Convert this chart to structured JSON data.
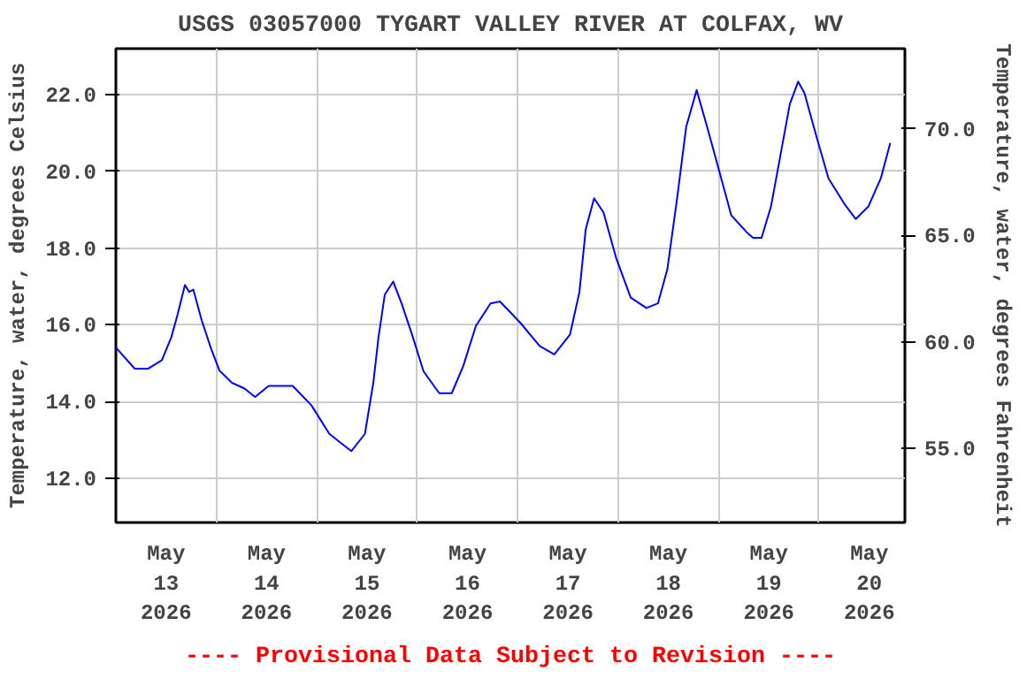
{
  "chart_data": {
    "type": "line",
    "title": "USGS 03057000 TYGART VALLEY RIVER AT COLFAX, WV",
    "ylabel": "Temperature, water, degrees Celsius",
    "y2label": "Temperature, water, degrees Fahrenheit",
    "annotations": [
      "---- Provisional Data Subject to Revision ----"
    ],
    "x": [
      "2026-05-13T00:00",
      "2026-05-13T04:30",
      "2026-05-13T07:45",
      "2026-05-13T11:00",
      "2026-05-13T13:15",
      "2026-05-13T14:45",
      "2026-05-13T16:30",
      "2026-05-13T17:30",
      "2026-05-13T18:30",
      "2026-05-13T20:30",
      "2026-05-13T22:45",
      "2026-05-14T00:45",
      "2026-05-14T03:45",
      "2026-05-14T06:45",
      "2026-05-14T09:15",
      "2026-05-14T12:30",
      "2026-05-14T18:15",
      "2026-05-14T22:45",
      "2026-05-15T03:00",
      "2026-05-15T08:15",
      "2026-05-15T11:30",
      "2026-05-15T13:30",
      "2026-05-15T14:45",
      "2026-05-15T16:15",
      "2026-05-15T18:15",
      "2026-05-15T20:15",
      "2026-05-15T22:45",
      "2026-05-16T01:30",
      "2026-05-16T05:15",
      "2026-05-16T08:15",
      "2026-05-16T11:00",
      "2026-05-16T14:00",
      "2026-05-16T17:30",
      "2026-05-16T19:45",
      "2026-05-16T22:45",
      "2026-05-17T00:45",
      "2026-05-17T05:15",
      "2026-05-17T08:45",
      "2026-05-17T12:30",
      "2026-05-17T14:45",
      "2026-05-17T16:15",
      "2026-05-17T18:15",
      "2026-05-17T20:30",
      "2026-05-17T23:30",
      "2026-05-18T03:00",
      "2026-05-18T06:45",
      "2026-05-18T09:30",
      "2026-05-18T11:45",
      "2026-05-18T14:00",
      "2026-05-18T16:15",
      "2026-05-18T18:45",
      "2026-05-18T21:15",
      "2026-05-19T00:15",
      "2026-05-19T03:00",
      "2026-05-19T06:45",
      "2026-05-19T08:15",
      "2026-05-19T10:15",
      "2026-05-19T12:30",
      "2026-05-19T14:45",
      "2026-05-19T17:00",
      "2026-05-19T19:00",
      "2026-05-19T20:30",
      "2026-05-19T23:30",
      "2026-05-20T02:15",
      "2026-05-20T06:00",
      "2026-05-20T08:45",
      "2026-05-20T11:45",
      "2026-05-20T14:45",
      "2026-05-20T17:00"
    ],
    "series": [
      {
        "color": "#0000ff",
        "values": [
          15.41,
          14.86,
          14.86,
          15.08,
          15.68,
          16.27,
          17.04,
          16.86,
          16.92,
          16.12,
          15.38,
          14.81,
          14.49,
          14.34,
          14.12,
          14.41,
          14.41,
          13.9,
          13.16,
          12.71,
          13.16,
          14.49,
          15.68,
          16.79,
          17.13,
          16.56,
          15.75,
          14.79,
          14.22,
          14.22,
          14.93,
          15.97,
          16.56,
          16.61,
          16.27,
          16.04,
          15.45,
          15.23,
          15.75,
          16.86,
          18.49,
          19.3,
          18.93,
          17.75,
          16.71,
          16.44,
          16.56,
          17.45,
          19.23,
          21.16,
          22.12,
          21.16,
          19.97,
          18.86,
          18.41,
          18.27,
          18.27,
          19.08,
          20.41,
          21.75,
          22.34,
          22.04,
          20.86,
          19.82,
          19.16,
          18.76,
          19.08,
          19.82,
          20.74
        ]
      }
    ],
    "xlim": [
      "2026-05-13T00:00",
      "2026-05-20T20:30"
    ],
    "xticks": [
      {
        "value": "2026-05-13T12:00",
        "label": "May\n13\n2026"
      },
      {
        "value": "2026-05-14T00:00",
        "label": null
      },
      {
        "value": "2026-05-14T12:00",
        "label": "May\n14\n2026"
      },
      {
        "value": "2026-05-15T00:00",
        "label": null
      },
      {
        "value": "2026-05-15T12:00",
        "label": "May\n15\n2026"
      },
      {
        "value": "2026-05-16T00:00",
        "label": null
      },
      {
        "value": "2026-05-16T12:00",
        "label": "May\n16\n2026"
      },
      {
        "value": "2026-05-17T00:00",
        "label": null
      },
      {
        "value": "2026-05-17T12:00",
        "label": "May\n17\n2026"
      },
      {
        "value": "2026-05-18T00:00",
        "label": null
      },
      {
        "value": "2026-05-18T12:00",
        "label": "May\n18\n2026"
      },
      {
        "value": "2026-05-19T00:00",
        "label": null
      },
      {
        "value": "2026-05-19T12:00",
        "label": "May\n19\n2026"
      },
      {
        "value": "2026-05-20T00:00",
        "label": null
      },
      {
        "value": "2026-05-20T12:00",
        "label": "May\n20\n2026"
      }
    ],
    "ylim": [
      10.85,
      23.2
    ],
    "yticks": [
      {
        "value": 12,
        "label": "12.0"
      },
      {
        "value": 14,
        "label": "14.0"
      },
      {
        "value": 16,
        "label": "16.0"
      },
      {
        "value": 18,
        "label": "18.0"
      },
      {
        "value": 20,
        "label": "20.0"
      },
      {
        "value": 22,
        "label": "22.0"
      }
    ],
    "y2lim": [
      51.53,
      73.76
    ],
    "y2ticks": [
      {
        "value": 55,
        "label": "55.0"
      },
      {
        "value": 60,
        "label": "60.0"
      },
      {
        "value": 65,
        "label": "65.0"
      },
      {
        "value": 70,
        "label": "70.0"
      }
    ],
    "grid": true,
    "marker": "none",
    "line_style": "solid"
  }
}
